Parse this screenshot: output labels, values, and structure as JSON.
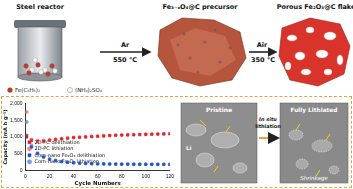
{
  "top": {
    "reactor": "Steel reactor",
    "reactants": [
      "Fe(C₅H₅)₂",
      "(NH₄)₂SO₄"
    ],
    "step1": {
      "gas": "Ar",
      "temperature": "550 °C"
    },
    "precursor": "Fe₃₋ₓO₄@C precursor",
    "step2": {
      "gas": "Air",
      "temperature": "350 °C"
    },
    "product": "Porous Fe₂O₃@C flakes"
  },
  "chart_data": {
    "type": "scatter",
    "x_label": "Cycle Numbers",
    "y_label": "Capacity (mA h g⁻¹)",
    "xlim": [
      0,
      120
    ],
    "xticks": [
      0,
      20,
      40,
      60,
      80,
      100,
      120
    ],
    "ylim": [
      0,
      2000
    ],
    "yticks": [
      0,
      500,
      1000,
      1500,
      2000
    ],
    "legend": "top-right",
    "grid": false,
    "x": [
      1,
      5,
      10,
      15,
      20,
      25,
      30,
      35,
      40,
      45,
      50,
      55,
      60,
      65,
      70,
      75,
      80,
      85,
      90,
      95,
      100,
      105,
      110,
      115,
      120
    ],
    "series": [
      {
        "name": "2D-PC delithiation",
        "color": "#e0202a",
        "marker": "square",
        "values": [
          1050,
          900,
          870,
          880,
          900,
          920,
          940,
          960,
          980,
          990,
          1000,
          1010,
          1020,
          1030,
          1040,
          1050,
          1055,
          1060,
          1065,
          1070,
          1075,
          1080,
          1085,
          1090,
          1095
        ]
      },
      {
        "name": "2D-PC lithiation",
        "color": "#f08a8a",
        "marker": "circle",
        "values": [
          1750,
          930,
          890,
          895,
          915,
          935,
          955,
          975,
          990,
          1000,
          1010,
          1020,
          1030,
          1040,
          1050,
          1060,
          1065,
          1070,
          1075,
          1080,
          1085,
          1090,
          1095,
          1100,
          1105
        ]
      },
      {
        "name": "Com-nano Fe₂O₃ delithiation",
        "color": "#1f4fbf",
        "marker": "square",
        "values": [
          1000,
          700,
          500,
          400,
          330,
          290,
          260,
          240,
          225,
          215,
          205,
          200,
          195,
          192,
          190,
          188,
          186,
          185,
          184,
          183,
          182,
          181,
          180,
          180,
          179
        ]
      },
      {
        "name": "Com-nano Fe₂O₃ lithiation",
        "color": "#6fa0e8",
        "marker": "circle",
        "values": [
          1450,
          740,
          520,
          415,
          340,
          300,
          268,
          247,
          231,
          220,
          210,
          204,
          199,
          196,
          194,
          191,
          189,
          188,
          187,
          186,
          185,
          184,
          183,
          183,
          182
        ]
      }
    ]
  },
  "in_situ": {
    "pristine": "Pristine",
    "ion": "Li",
    "process": [
      "In situ",
      "lithiation"
    ],
    "final": "Fully Lithiated",
    "note": "Shrinkage"
  }
}
